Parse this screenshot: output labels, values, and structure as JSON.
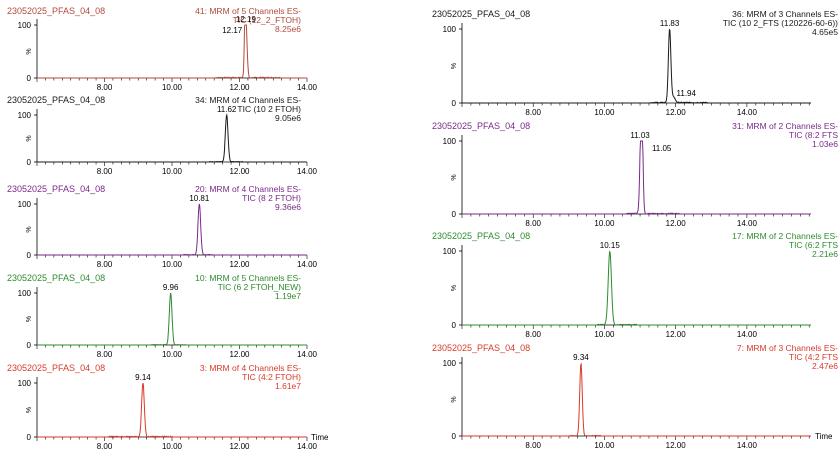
{
  "chart_data": [
    {
      "type": "line",
      "panel": "left-1",
      "sample": "23052025_PFAS_04_08",
      "info": [
        "41: MRM of 5 Channels ES-",
        "TIC (12_2_FTOH)",
        "8.25e6"
      ],
      "color": "#b04a3c",
      "xlim": [
        6.0,
        14.0
      ],
      "xticks": [
        "8.00",
        "10.00",
        "12.00",
        "14.00"
      ],
      "yticks": [
        "100",
        "%",
        "0"
      ],
      "xlabel": "",
      "peaks": [
        {
          "x": 12.19,
          "height": 100,
          "width": 0.035
        },
        {
          "x": 12.17,
          "height": 83,
          "width": 0.02
        }
      ],
      "peak_labels": [
        {
          "text": "12.19",
          "x": 12.19,
          "y": 100
        },
        {
          "text": "12.17",
          "x": 12.17,
          "y": 83
        }
      ],
      "noise": [
        [
          11.3,
          12.05,
          1.5
        ],
        [
          12.35,
          13.2,
          1.5
        ]
      ]
    },
    {
      "type": "line",
      "panel": "left-2",
      "sample": "23052025_PFAS_04_08",
      "info": [
        "34: MRM of 4 Channels ES-",
        "TIC (10 2 FTOH)",
        "9.05e6"
      ],
      "color": "#1a1a1a",
      "xlim": [
        6.0,
        14.0
      ],
      "xticks": [
        "8.00",
        "10.00",
        "12.00",
        "14.00"
      ],
      "yticks": [
        "100",
        "%",
        "0"
      ],
      "xlabel": "",
      "peaks": [
        {
          "x": 11.62,
          "height": 100,
          "width": 0.04
        }
      ],
      "peak_labels": [
        {
          "text": "11.62",
          "x": 11.62,
          "y": 100
        }
      ],
      "noise": [
        [
          11.1,
          11.5,
          1.0
        ],
        [
          11.75,
          12.1,
          1.0
        ]
      ]
    },
    {
      "type": "line",
      "panel": "left-3",
      "sample": "23052025_PFAS_04_08",
      "info": [
        "20: MRM of 4 Channels ES-",
        "TIC (8 2 FTOH)",
        "9.36e6"
      ],
      "color": "#7a2a8a",
      "xlim": [
        6.0,
        14.0
      ],
      "xticks": [
        "8.00",
        "10.00",
        "12.00",
        "14.00"
      ],
      "yticks": [
        "100",
        "%",
        "0"
      ],
      "xlabel": "",
      "peaks": [
        {
          "x": 10.81,
          "height": 100,
          "width": 0.04
        }
      ],
      "peak_labels": [
        {
          "text": "10.81",
          "x": 10.81,
          "y": 100
        }
      ],
      "noise": [
        [
          10.3,
          10.7,
          1.0
        ],
        [
          10.95,
          11.2,
          1.0
        ]
      ]
    },
    {
      "type": "line",
      "panel": "left-4",
      "sample": "23052025_PFAS_04_08",
      "info": [
        "10: MRM of 5 Channels ES-",
        "TIC (6 2 FTOH_NEW)",
        "1.19e7"
      ],
      "color": "#2e8b2e",
      "xlim": [
        6.0,
        14.0
      ],
      "xticks": [
        "8.00",
        "10.00",
        "12.00",
        "14.00"
      ],
      "yticks": [
        "100",
        "%",
        "0"
      ],
      "xlabel": "",
      "peaks": [
        {
          "x": 9.96,
          "height": 100,
          "width": 0.04
        }
      ],
      "peak_labels": [
        {
          "text": "9.96",
          "x": 9.96,
          "y": 100
        }
      ],
      "noise": [
        [
          9.4,
          9.85,
          1.0
        ],
        [
          10.1,
          10.4,
          1.0
        ]
      ]
    },
    {
      "type": "line",
      "panel": "left-5",
      "sample": "23052025_PFAS_04_08",
      "info": [
        "3: MRM of 4 Channels ES-",
        "TIC (4:2 FTOH)",
        "1.61e7"
      ],
      "color": "#d93a2b",
      "xlim": [
        6.0,
        14.0
      ],
      "xticks": [
        "8.00",
        "10.00",
        "12.00",
        "14.00"
      ],
      "yticks": [
        "100",
        "%",
        "0"
      ],
      "xlabel": "Time",
      "peaks": [
        {
          "x": 9.14,
          "height": 100,
          "width": 0.04
        }
      ],
      "peak_labels": [
        {
          "text": "9.14",
          "x": 9.14,
          "y": 100
        }
      ],
      "noise": [
        [
          8.1,
          9.0,
          1.5
        ],
        [
          9.3,
          10.0,
          1.5
        ]
      ]
    },
    {
      "type": "line",
      "panel": "right-1",
      "sample": "23052025_PFAS_04_08",
      "info": [
        "36: MRM of 3 Channels ES-",
        "TIC (10 2_FTS (120226-60-6))",
        "4.65e5"
      ],
      "color": "#1a1a1a",
      "xlim": [
        6.0,
        15.8
      ],
      "xticks": [
        "8.00",
        "10.00",
        "12.00",
        "14.00"
      ],
      "yticks": [
        "100",
        "%",
        "0"
      ],
      "xlabel": "",
      "peaks": [
        {
          "x": 11.83,
          "height": 100,
          "width": 0.035
        },
        {
          "x": 11.94,
          "height": 8,
          "width": 0.05
        }
      ],
      "peak_labels": [
        {
          "text": "11.83",
          "x": 11.83,
          "y": 100
        },
        {
          "text": "11.94",
          "x": 11.94,
          "y": 8
        }
      ],
      "noise": [
        [
          11.3,
          11.75,
          1.2
        ],
        [
          12.05,
          12.9,
          1.2
        ]
      ]
    },
    {
      "type": "line",
      "panel": "right-2",
      "sample": "23052025_PFAS_04_08",
      "info": [
        "31: MRM of 2 Channels ES-",
        "TIC (8:2 FTS",
        "1.03e6"
      ],
      "color": "#7a2a8a",
      "xlim": [
        6.0,
        15.8
      ],
      "xticks": [
        "8.00",
        "10.00",
        "12.00",
        "14.00"
      ],
      "yticks": [
        "100",
        "%",
        "0"
      ],
      "xlabel": "",
      "peaks": [
        {
          "x": 11.03,
          "height": 100,
          "width": 0.035
        },
        {
          "x": 11.05,
          "height": 85,
          "width": 0.03
        }
      ],
      "peak_labels": [
        {
          "text": "11.03",
          "x": 11.0,
          "y": 100
        },
        {
          "text": "11.05",
          "x": 11.25,
          "y": 85
        }
      ],
      "noise": [
        [
          10.6,
          10.95,
          1.2
        ],
        [
          11.2,
          12.1,
          1.2
        ]
      ]
    },
    {
      "type": "line",
      "panel": "right-3",
      "sample": "23052025_PFAS_04_08",
      "info": [
        "17: MRM of 2 Channels ES-",
        "TIC (6:2 FTS",
        "2.21e6"
      ],
      "color": "#2e8b2e",
      "xlim": [
        6.0,
        15.8
      ],
      "xticks": [
        "8.00",
        "10.00",
        "12.00",
        "14.00"
      ],
      "yticks": [
        "100",
        "%",
        "0"
      ],
      "xlabel": "",
      "peaks": [
        {
          "x": 10.15,
          "height": 100,
          "width": 0.045
        }
      ],
      "peak_labels": [
        {
          "text": "10.15",
          "x": 10.15,
          "y": 100
        }
      ],
      "noise": [
        [
          9.8,
          10.05,
          1.0
        ],
        [
          10.35,
          10.9,
          1.0
        ]
      ]
    },
    {
      "type": "line",
      "panel": "right-4",
      "sample": "23052025_PFAS_04_08",
      "info": [
        "7: MRM of 3 Channels ES-",
        "TIC (4:2 FTS",
        "2.47e6"
      ],
      "color": "#d93a2b",
      "xlim": [
        6.0,
        15.8
      ],
      "xticks": [
        "8.00",
        "10.00",
        "12.00",
        "14.00"
      ],
      "yticks": [
        "100",
        "%",
        "0"
      ],
      "xlabel": "Time",
      "peaks": [
        {
          "x": 9.34,
          "height": 100,
          "width": 0.035
        }
      ],
      "peak_labels": [
        {
          "text": "9.34",
          "x": 9.34,
          "y": 100
        }
      ],
      "noise": [
        [
          9.0,
          9.25,
          0.8
        ],
        [
          9.45,
          9.9,
          0.8
        ]
      ]
    }
  ]
}
